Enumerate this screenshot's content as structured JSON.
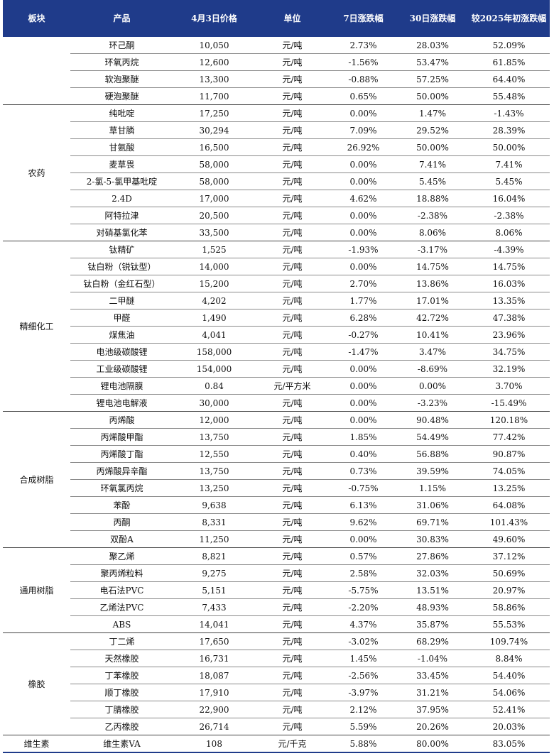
{
  "headers": [
    "板块",
    "产品",
    "4月3日价格",
    "单位",
    "7日涨跌幅",
    "30日涨跌幅",
    "较2025年初涨跌幅"
  ],
  "groups": [
    {
      "sector": "",
      "rows": [
        [
          "环己酮",
          "10,050",
          "元/吨",
          "2.73%",
          "28.03%",
          "52.09%"
        ],
        [
          "环氧丙烷",
          "12,600",
          "元/吨",
          "-1.56%",
          "53.47%",
          "61.85%"
        ],
        [
          "软泡聚醚",
          "13,300",
          "元/吨",
          "-0.88%",
          "57.25%",
          "64.40%"
        ],
        [
          "硬泡聚醚",
          "11,700",
          "元/吨",
          "0.65%",
          "50.00%",
          "55.48%"
        ]
      ]
    },
    {
      "sector": "农药",
      "rows": [
        [
          "纯吡啶",
          "17,250",
          "元/吨",
          "0.00%",
          "1.47%",
          "-1.43%"
        ],
        [
          "草甘膦",
          "30,294",
          "元/吨",
          "7.09%",
          "29.52%",
          "28.39%"
        ],
        [
          "甘氨酸",
          "16,500",
          "元/吨",
          "26.92%",
          "50.00%",
          "50.00%"
        ],
        [
          "麦草畏",
          "58,000",
          "元/吨",
          "0.00%",
          "7.41%",
          "7.41%"
        ],
        [
          "2-氯-5-氯甲基吡啶",
          "58,000",
          "元/吨",
          "0.00%",
          "5.45%",
          "5.45%"
        ],
        [
          "2.4D",
          "17,000",
          "元/吨",
          "4.62%",
          "18.88%",
          "16.04%"
        ],
        [
          "阿特拉津",
          "20,500",
          "元/吨",
          "0.00%",
          "-2.38%",
          "-2.38%"
        ],
        [
          "对硝基氯化苯",
          "33,500",
          "元/吨",
          "0.00%",
          "8.06%",
          "8.06%"
        ]
      ]
    },
    {
      "sector": "精细化工",
      "rows": [
        [
          "钛精矿",
          "1,525",
          "元/吨",
          "-1.93%",
          "-3.17%",
          "-4.39%"
        ],
        [
          "钛白粉（锐钛型）",
          "14,000",
          "元/吨",
          "0.00%",
          "14.75%",
          "14.75%"
        ],
        [
          "钛白粉（金红石型）",
          "15,200",
          "元/吨",
          "2.70%",
          "13.86%",
          "16.03%"
        ],
        [
          "二甲醚",
          "4,202",
          "元/吨",
          "1.77%",
          "17.01%",
          "13.35%"
        ],
        [
          "甲醛",
          "1,490",
          "元/吨",
          "6.28%",
          "42.72%",
          "47.38%"
        ],
        [
          "煤焦油",
          "4,041",
          "元/吨",
          "-0.27%",
          "10.41%",
          "23.96%"
        ],
        [
          "电池级碳酸锂",
          "158,000",
          "元/吨",
          "-1.47%",
          "3.47%",
          "34.75%"
        ],
        [
          "工业级碳酸锂",
          "154,000",
          "元/吨",
          "0.00%",
          "-8.69%",
          "32.19%"
        ],
        [
          "锂电池隔膜",
          "0.84",
          "元/平方米",
          "0.00%",
          "0.00%",
          "3.70%"
        ],
        [
          "锂电池电解液",
          "30,000",
          "元/吨",
          "0.00%",
          "-3.23%",
          "-15.49%"
        ]
      ]
    },
    {
      "sector": "合成树脂",
      "rows": [
        [
          "丙烯酸",
          "12,000",
          "元/吨",
          "0.00%",
          "90.48%",
          "120.18%"
        ],
        [
          "丙烯酸甲酯",
          "13,750",
          "元/吨",
          "1.85%",
          "54.49%",
          "77.42%"
        ],
        [
          "丙烯酸丁酯",
          "12,550",
          "元/吨",
          "0.40%",
          "56.88%",
          "90.87%"
        ],
        [
          "丙烯酸异辛酯",
          "13,750",
          "元/吨",
          "0.73%",
          "39.59%",
          "74.05%"
        ],
        [
          "环氧氯丙烷",
          "13,250",
          "元/吨",
          "-0.75%",
          "1.15%",
          "13.25%"
        ],
        [
          "苯酚",
          "9,638",
          "元/吨",
          "6.13%",
          "31.06%",
          "64.08%"
        ],
        [
          "丙酮",
          "8,331",
          "元/吨",
          "9.62%",
          "69.71%",
          "101.43%"
        ],
        [
          "双酚A",
          "11,250",
          "元/吨",
          "0.00%",
          "30.83%",
          "49.60%"
        ]
      ]
    },
    {
      "sector": "通用树脂",
      "rows": [
        [
          "聚乙烯",
          "8,821",
          "元/吨",
          "0.57%",
          "27.86%",
          "37.12%"
        ],
        [
          "聚丙烯粒料",
          "9,275",
          "元/吨",
          "2.58%",
          "32.03%",
          "50.69%"
        ],
        [
          "电石法PVC",
          "5,151",
          "元/吨",
          "-5.75%",
          "13.51%",
          "20.97%"
        ],
        [
          "乙烯法PVC",
          "7,433",
          "元/吨",
          "-2.20%",
          "48.93%",
          "58.86%"
        ],
        [
          "ABS",
          "14,041",
          "元/吨",
          "4.37%",
          "35.87%",
          "55.53%"
        ]
      ]
    },
    {
      "sector": "橡胶",
      "rows": [
        [
          "丁二烯",
          "17,650",
          "元/吨",
          "-3.02%",
          "68.29%",
          "109.74%"
        ],
        [
          "天然橡胶",
          "16,731",
          "元/吨",
          "1.45%",
          "-1.04%",
          "8.84%"
        ],
        [
          "丁苯橡胶",
          "18,087",
          "元/吨",
          "-2.56%",
          "33.45%",
          "54.40%"
        ],
        [
          "顺丁橡胶",
          "17,910",
          "元/吨",
          "-3.97%",
          "31.21%",
          "54.06%"
        ],
        [
          "丁腈橡胶",
          "22,900",
          "元/吨",
          "2.12%",
          "37.95%",
          "52.41%"
        ],
        [
          "乙丙橡胶",
          "26,714",
          "元/吨",
          "5.59%",
          "20.26%",
          "20.03%"
        ]
      ]
    },
    {
      "sector": "维生素",
      "rows": [
        [
          "维生素VA",
          "108",
          "元/千克",
          "5.88%",
          "80.00%",
          "83.05%"
        ]
      ]
    }
  ]
}
